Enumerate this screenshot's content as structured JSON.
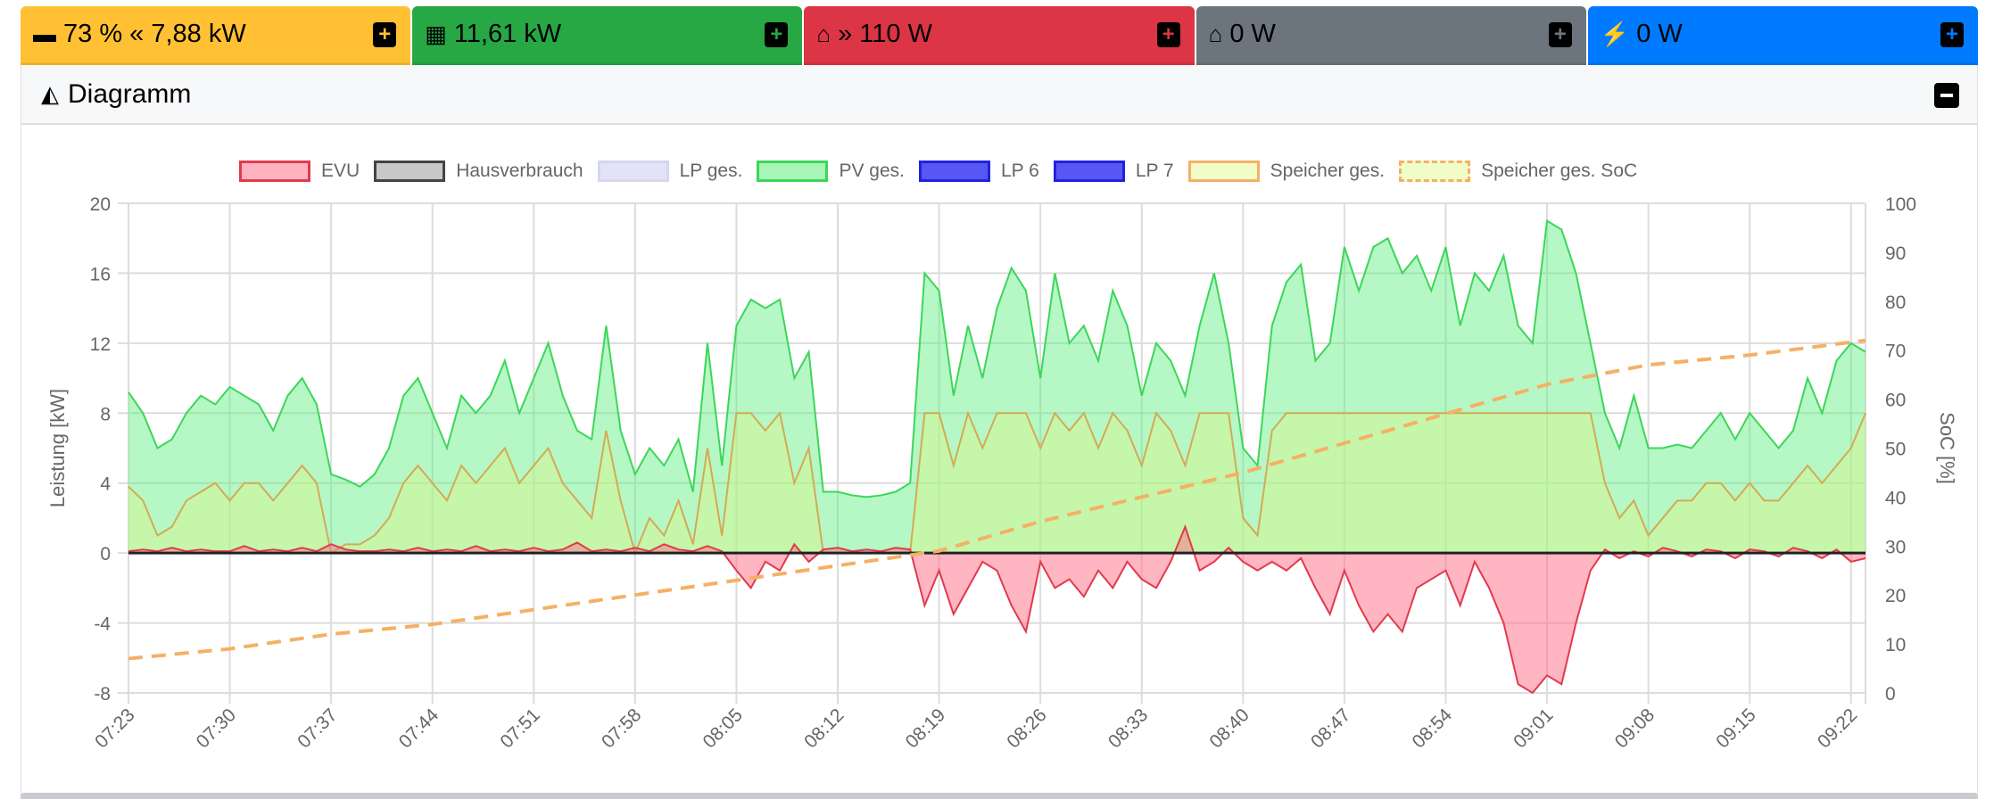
{
  "power_buttons": [
    {
      "label": "73 % « 7,88 kW",
      "icon": "battery-icon",
      "color": "#ffc133"
    },
    {
      "label": "11,61 kW",
      "icon": "solar-panel-icon",
      "color": "#28a745"
    },
    {
      "label": "» 110 W",
      "icon": "home-to-grid-icon",
      "color": "#dc3545"
    },
    {
      "label": "0 W",
      "icon": "home-icon",
      "color": "#6c757d"
    },
    {
      "label": "0 W",
      "icon": "charging-station-icon",
      "color": "#007bff"
    }
  ],
  "card": {
    "title": "Diagramm",
    "icon": "area-chart-icon"
  },
  "chart_data": {
    "type": "line",
    "legend_position": "top",
    "legend": [
      {
        "name": "EVU",
        "fill": "#ffb3c0",
        "stroke": "#e03a4d",
        "dash": false
      },
      {
        "name": "Hausverbrauch",
        "fill": "#c8c8c8",
        "stroke": "#444444",
        "dash": false
      },
      {
        "name": "LP ges.",
        "fill": "#e3e3f8",
        "stroke": "#d6d6f0",
        "dash": false
      },
      {
        "name": "PV ges.",
        "fill": "#a8f5b8",
        "stroke": "#3cd65a",
        "dash": false
      },
      {
        "name": "LP 6",
        "fill": "#5757f5",
        "stroke": "#2222dd",
        "dash": false
      },
      {
        "name": "LP 7",
        "fill": "#5757f5",
        "stroke": "#2222dd",
        "dash": false
      },
      {
        "name": "Speicher ges.",
        "fill": "#f0fdc8",
        "stroke": "#f5b066",
        "dash": false
      },
      {
        "name": "Speicher ges. SoC",
        "fill": "#f0fdc8",
        "stroke": "#f5b066",
        "dash": true
      }
    ],
    "ylabel": "Leistung [kW]",
    "y2label": "SoC [%]",
    "ylim": [
      -8,
      20
    ],
    "yticks": [
      "20",
      "16",
      "12",
      "8",
      "4",
      "0",
      "-4",
      "-8"
    ],
    "y2lim": [
      0,
      100
    ],
    "y2ticks": [
      "100",
      "90",
      "80",
      "70",
      "60",
      "50",
      "40",
      "30",
      "20",
      "10",
      "0"
    ],
    "xticks": [
      "07:23",
      "07:30",
      "07:37",
      "07:44",
      "07:51",
      "07:58",
      "08:05",
      "08:12",
      "08:19",
      "08:26",
      "08:33",
      "08:40",
      "08:47",
      "08:54",
      "09:01",
      "09:08",
      "09:15",
      "09:22"
    ],
    "x_start": "07:23",
    "x_end": "09:23",
    "x_step_minutes": 1,
    "series": [
      {
        "name": "PV ges.",
        "values": [
          9.2,
          8,
          6,
          6.5,
          8,
          9,
          8.5,
          9.5,
          9,
          8.5,
          7,
          9,
          10,
          8.5,
          4.5,
          4.2,
          3.8,
          4.5,
          6,
          9,
          10,
          8,
          6,
          9,
          8,
          9,
          11,
          8,
          10,
          12,
          9,
          7,
          6.5,
          13,
          7,
          4.5,
          6,
          5,
          6.5,
          3.5,
          12,
          5,
          13,
          14.5,
          14,
          14.5,
          10,
          11.5,
          3.5,
          3.5,
          3.3,
          3.2,
          3.3,
          3.5,
          4,
          16,
          15,
          9,
          13,
          10,
          14,
          16.3,
          15,
          10,
          16,
          12,
          13,
          11,
          15,
          13,
          9,
          12,
          11,
          9,
          13,
          16,
          12,
          6,
          5,
          13,
          15.5,
          16.5,
          11,
          12,
          17.5,
          15,
          17.5,
          18,
          16,
          17,
          15,
          17.5,
          13,
          16,
          15,
          17,
          13,
          12,
          19,
          18.5,
          16,
          12,
          8,
          6,
          9,
          6,
          6,
          6.2,
          6,
          7,
          8,
          6.5,
          8,
          7,
          6,
          7,
          10,
          8,
          11,
          12,
          11.5
        ]
      },
      {
        "name": "Speicher ges.",
        "values": [
          3.8,
          3,
          1,
          1.5,
          3,
          3.5,
          4,
          3,
          4,
          4,
          3,
          4,
          5,
          4,
          0,
          0.5,
          0.5,
          1,
          2,
          4,
          5,
          4,
          3,
          5,
          4,
          5,
          6,
          4,
          5,
          6,
          4,
          3,
          2,
          7,
          3,
          0,
          2,
          1,
          3,
          0.5,
          6,
          1,
          8,
          8,
          7,
          8,
          4,
          6,
          0,
          0,
          0,
          0,
          0,
          0,
          0,
          8,
          8,
          5,
          8,
          6,
          8,
          8,
          8,
          6,
          8,
          7,
          8,
          6,
          8,
          7,
          5,
          8,
          7,
          5,
          8,
          8,
          8,
          2,
          1,
          7,
          8,
          8,
          8,
          8,
          8,
          8,
          8,
          8,
          8,
          8,
          8,
          8,
          8,
          8,
          8,
          8,
          8,
          8,
          8,
          8,
          8,
          8,
          4,
          2,
          3,
          1,
          2,
          3,
          3,
          4,
          4,
          3,
          4,
          3,
          3,
          4,
          5,
          4,
          5,
          6,
          8
        ]
      },
      {
        "name": "EVU",
        "values": [
          0.1,
          0.2,
          0.1,
          0.3,
          0.1,
          0.2,
          0.1,
          0.1,
          0.4,
          0.1,
          0.2,
          0.1,
          0.3,
          0.1,
          0.5,
          0.2,
          0.1,
          0.1,
          0.2,
          0.1,
          0.3,
          0.1,
          0.2,
          0.1,
          0.4,
          0.1,
          0.2,
          0.1,
          0.3,
          0.1,
          0.2,
          0.6,
          0.1,
          0.2,
          0.1,
          0.3,
          0.1,
          0.5,
          0.2,
          0.1,
          0.4,
          0.1,
          -1,
          -2,
          -0.5,
          -1,
          0.5,
          -0.5,
          0.2,
          0.3,
          0.1,
          0.2,
          0.1,
          0.3,
          0.2,
          -3,
          -1,
          -3.5,
          -2,
          -0.5,
          -1,
          -3,
          -4.5,
          -0.5,
          -2,
          -1.5,
          -2.5,
          -1,
          -2,
          -0.5,
          -1.5,
          -2,
          -0.5,
          1.5,
          -1,
          -0.5,
          0.3,
          -0.5,
          -1,
          -0.5,
          -1,
          -0.3,
          -2,
          -3.5,
          -1,
          -3,
          -4.5,
          -3.5,
          -4.5,
          -2,
          -1.5,
          -1,
          -3,
          -0.5,
          -2,
          -4,
          -7.5,
          -8,
          -7,
          -7.5,
          -4,
          -1,
          0.2,
          -0.3,
          0.1,
          -0.2,
          0.3,
          0.1,
          -0.2,
          0.2,
          0.1,
          -0.3,
          0.2,
          0.1,
          -0.2,
          0.3,
          0.1,
          -0.3,
          0.2,
          -0.5,
          -0.3
        ]
      },
      {
        "name": "Hausverbrauch",
        "values": [
          0
        ]
      },
      {
        "name": "Speicher ges. SoC",
        "keyframes": [
          [
            0,
            7
          ],
          [
            7,
            9
          ],
          [
            14,
            12
          ],
          [
            21,
            14
          ],
          [
            28,
            17
          ],
          [
            35,
            20
          ],
          [
            42,
            23
          ],
          [
            49,
            26
          ],
          [
            56,
            29
          ],
          [
            63,
            35
          ],
          [
            70,
            40
          ],
          [
            77,
            45
          ],
          [
            84,
            51
          ],
          [
            91,
            57
          ],
          [
            98,
            63
          ],
          [
            105,
            67
          ],
          [
            112,
            69
          ],
          [
            120,
            72
          ]
        ]
      }
    ]
  }
}
